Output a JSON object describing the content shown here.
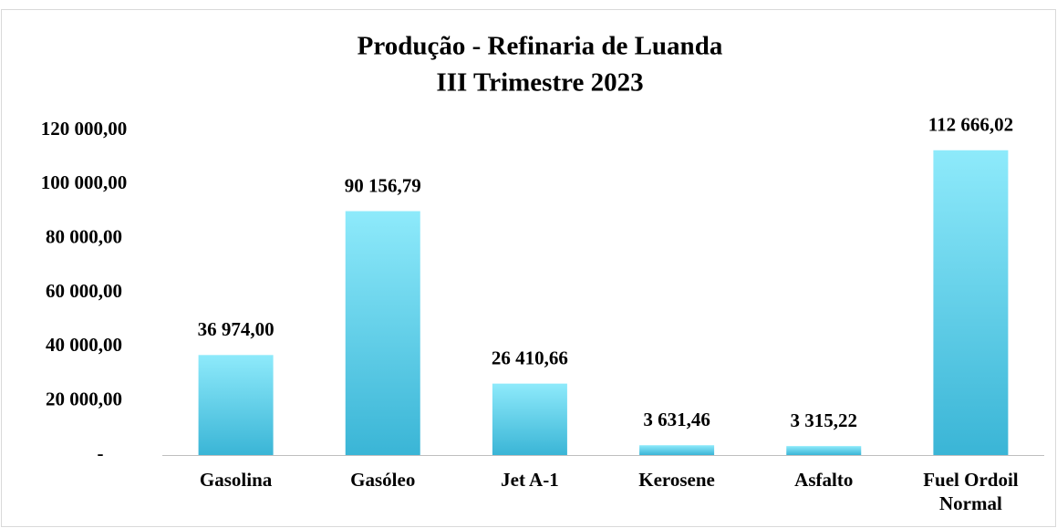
{
  "chart_data": {
    "type": "bar",
    "title": [
      "Produção - Refinaria de Luanda",
      "III Trimestre 2023"
    ],
    "categories": [
      "Gasolina",
      "Gasóleo",
      "Jet A-1",
      "Kerosene",
      "Asfalto",
      "Fuel Ordoil Normal"
    ],
    "values": [
      36974.0,
      90156.79,
      26410.66,
      3631.46,
      3315.22,
      112666.02
    ],
    "value_labels": [
      "36 974,00",
      "90 156,79",
      "26 410,66",
      "3 631,46",
      "3 315,22",
      "112 666,02"
    ],
    "color": [
      "#8eeafb",
      "#3ab5d6"
    ],
    "ylim": [
      0,
      120000
    ],
    "yticks": [
      {
        "value": 0,
        "label": "-"
      },
      {
        "value": 20000,
        "label": "20 000,00"
      },
      {
        "value": 40000,
        "label": "40 000,00"
      },
      {
        "value": 60000,
        "label": "60 000,00"
      },
      {
        "value": 80000,
        "label": "80 000,00"
      },
      {
        "value": 100000,
        "label": "100 000,00"
      },
      {
        "value": 120000,
        "label": "120 000,00"
      }
    ],
    "grid": false
  }
}
